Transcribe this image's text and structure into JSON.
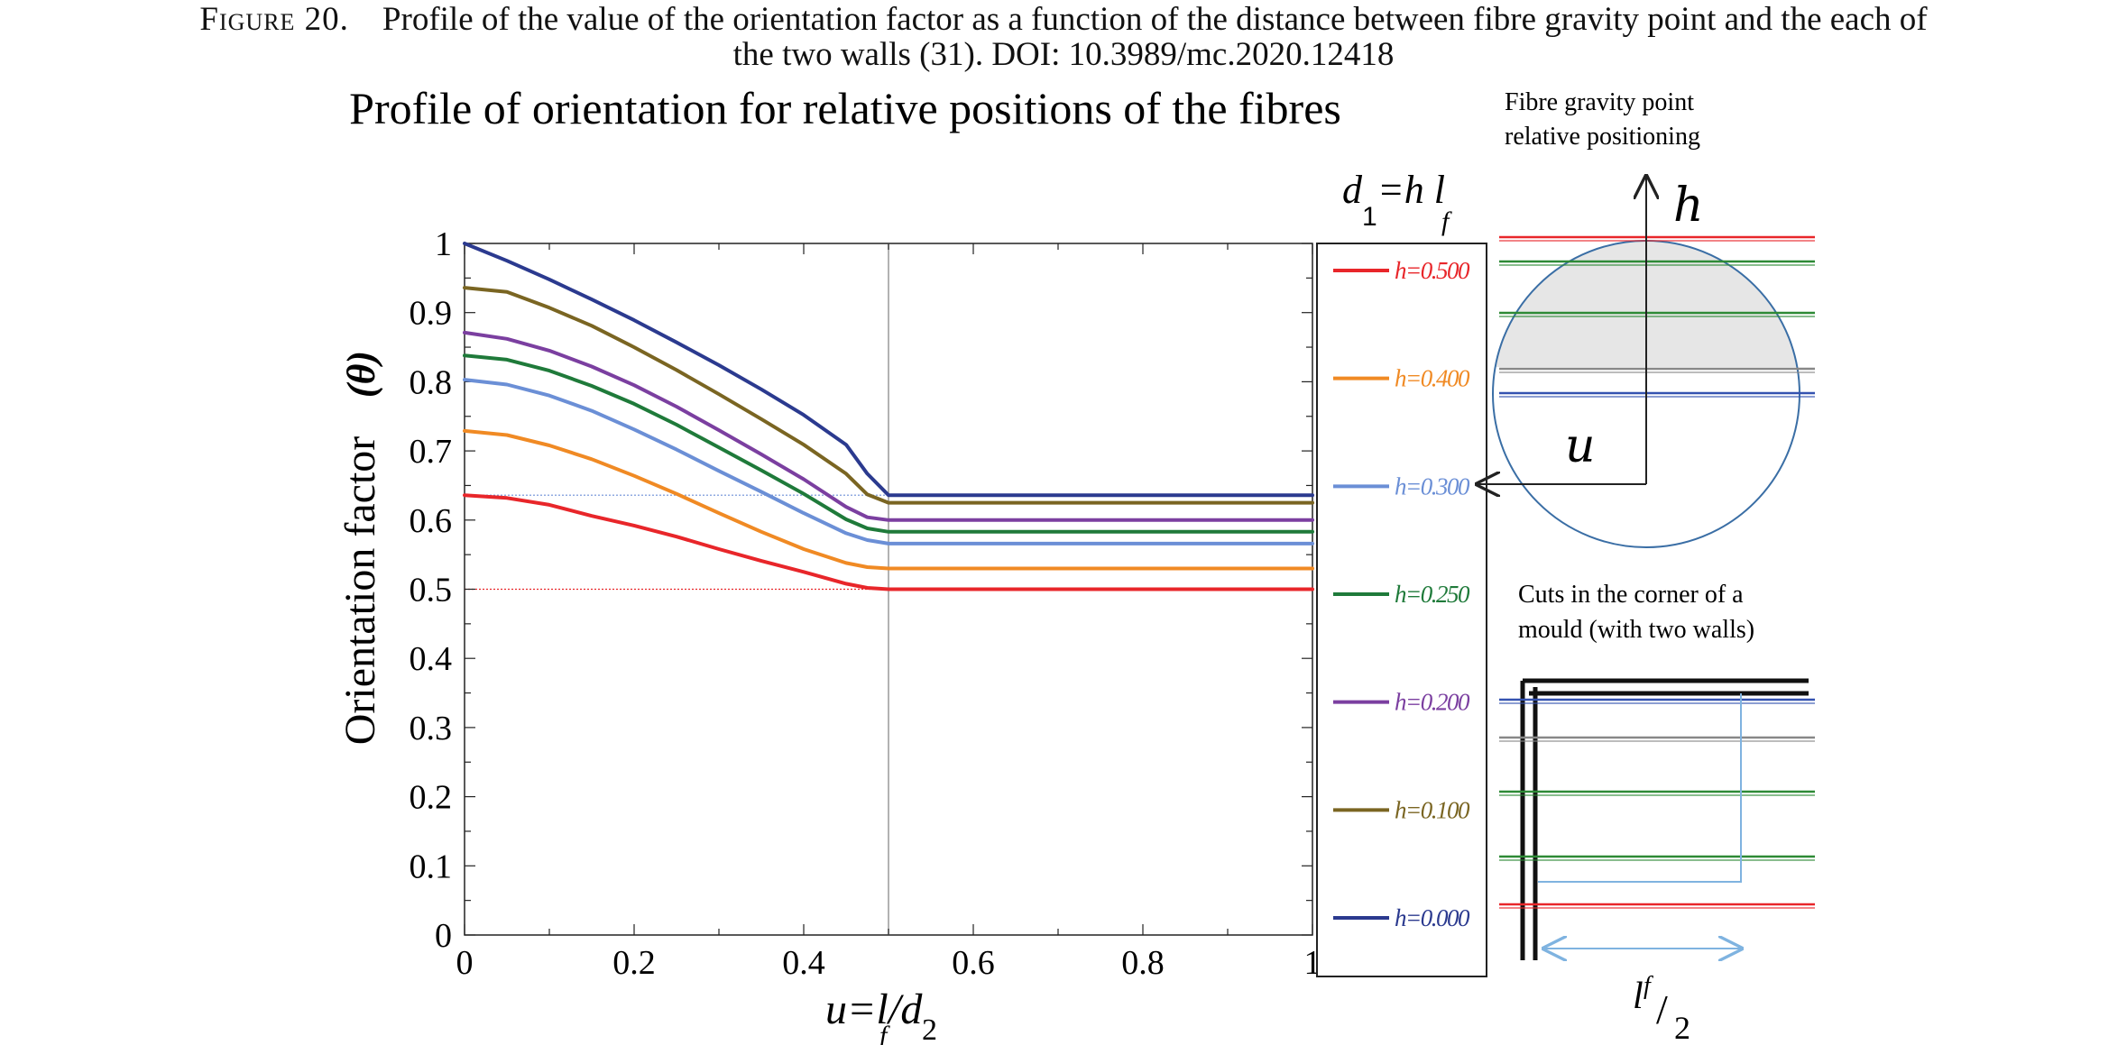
{
  "caption": {
    "label": "Figure 20.",
    "line1": "Profile of the value of the orientation factor as a function of the distance between fibre gravity point and the each of",
    "line2": "the two walls (31). DOI: 10.3989/mc.2020.12418"
  },
  "chart_data": {
    "type": "line",
    "title": "Profile of orientation for relative positions of the fibres",
    "xlabel": "u=l_f/d_2",
    "ylabel": "Orientation factor (θ)",
    "xlim": [
      0,
      1
    ],
    "ylim": [
      0,
      1
    ],
    "x_ticks": [
      "0",
      "0.2",
      "0.4",
      "0.6",
      "0.8",
      "1"
    ],
    "y_ticks": [
      "0",
      "0.1",
      "0.2",
      "0.3",
      "0.4",
      "0.5",
      "0.6",
      "0.7",
      "0.8",
      "0.9",
      "1"
    ],
    "grid": false,
    "legend_title": "d_1=h l_f",
    "legend_position": "right",
    "x": [
      0,
      0.05,
      0.1,
      0.15,
      0.2,
      0.25,
      0.3,
      0.35,
      0.4,
      0.45,
      0.475,
      0.5,
      0.6,
      0.7,
      0.8,
      0.9,
      1
    ],
    "series": [
      {
        "name": "h=0.500",
        "color": "#e8262a",
        "values": [
          0.636,
          0.632,
          0.622,
          0.606,
          0.592,
          0.576,
          0.558,
          0.541,
          0.525,
          0.508,
          0.502,
          0.5,
          0.5,
          0.5,
          0.5,
          0.5,
          0.5
        ]
      },
      {
        "name": "h=0.400",
        "color": "#f08a24",
        "values": [
          0.729,
          0.723,
          0.708,
          0.688,
          0.664,
          0.638,
          0.61,
          0.583,
          0.558,
          0.538,
          0.532,
          0.53,
          0.53,
          0.53,
          0.53,
          0.53,
          0.53
        ]
      },
      {
        "name": "h=0.300",
        "color": "#6b8fd6",
        "values": [
          0.803,
          0.796,
          0.78,
          0.758,
          0.731,
          0.702,
          0.671,
          0.641,
          0.61,
          0.581,
          0.571,
          0.566,
          0.566,
          0.566,
          0.566,
          0.566,
          0.566
        ]
      },
      {
        "name": "h=0.250",
        "color": "#1f7a3a",
        "values": [
          0.838,
          0.832,
          0.816,
          0.794,
          0.768,
          0.738,
          0.705,
          0.672,
          0.638,
          0.601,
          0.588,
          0.583,
          0.583,
          0.583,
          0.583,
          0.583,
          0.583
        ]
      },
      {
        "name": "h=0.200",
        "color": "#7b3fa0",
        "values": [
          0.871,
          0.862,
          0.845,
          0.822,
          0.795,
          0.764,
          0.73,
          0.695,
          0.659,
          0.619,
          0.604,
          0.6,
          0.6,
          0.6,
          0.6,
          0.6,
          0.6
        ]
      },
      {
        "name": "h=0.100",
        "color": "#7a6522",
        "values": [
          0.936,
          0.93,
          0.907,
          0.881,
          0.85,
          0.817,
          0.782,
          0.746,
          0.709,
          0.667,
          0.637,
          0.625,
          0.625,
          0.625,
          0.625,
          0.625,
          0.625
        ]
      },
      {
        "name": "h=0.000",
        "color": "#2b3a8f",
        "values": [
          1.0,
          0.975,
          0.948,
          0.919,
          0.889,
          0.857,
          0.824,
          0.789,
          0.752,
          0.709,
          0.667,
          0.636,
          0.636,
          0.636,
          0.636,
          0.636,
          0.636
        ]
      }
    ],
    "reference_lines": [
      {
        "y": 0.636,
        "x_to": 0.5,
        "color": "#6b8fd6"
      },
      {
        "y": 0.5,
        "x_to": 0.5,
        "color": "#e8262a"
      }
    ]
  },
  "diagram_top": {
    "title_line1": "Fibre gravity point",
    "title_line2": "relative positioning",
    "h_label": "h",
    "u_label": "u",
    "line_colors": [
      "#e8262a",
      "#2e8a36",
      "#2e8a36",
      "#888888",
      "#3452b0"
    ]
  },
  "diagram_bottom": {
    "title_line1": "Cuts in the corner of a",
    "title_line2": "mould (with two walls)",
    "dim_label": "l_f/2",
    "line_colors": [
      "#3452b0",
      "#888888",
      "#2e8a36",
      "#2e8a36",
      "#e8262a"
    ]
  }
}
